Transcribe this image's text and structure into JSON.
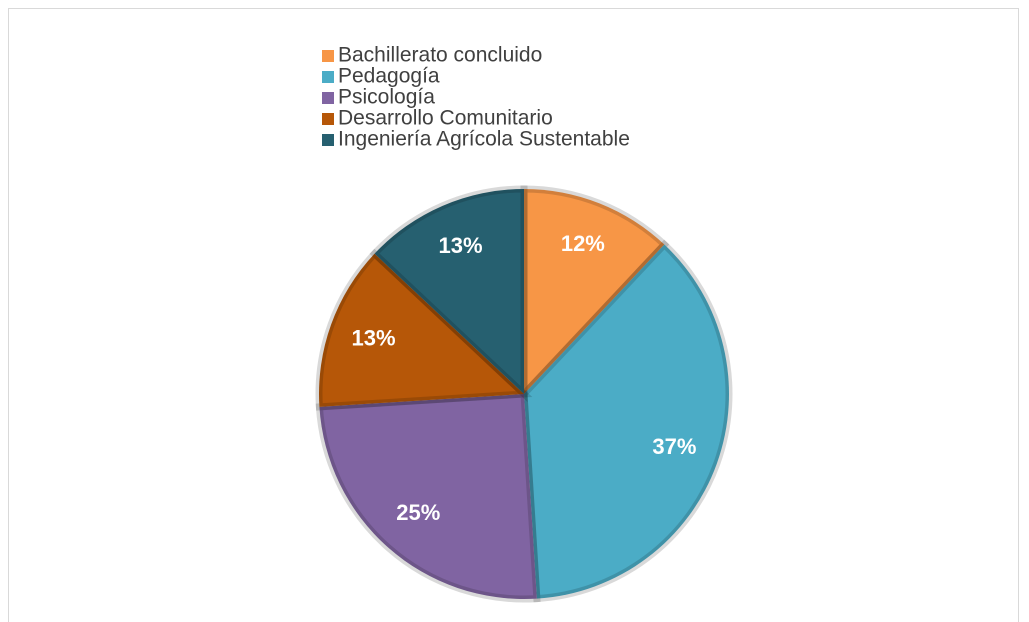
{
  "chart_data": {
    "type": "pie",
    "categories": [
      "Bachillerato concluido",
      "Pedagogía",
      "Psicología",
      "Desarrollo Comunitario",
      "Ingeniería Agrícola Sustentable"
    ],
    "values": [
      12,
      37,
      25,
      13,
      13
    ],
    "value_labels": [
      "12%",
      "37%",
      "25%",
      "13%",
      "13%"
    ],
    "colors": [
      "#f79646",
      "#4bacc6",
      "#8064a2",
      "#b65708",
      "#266070"
    ],
    "legend": "top"
  }
}
